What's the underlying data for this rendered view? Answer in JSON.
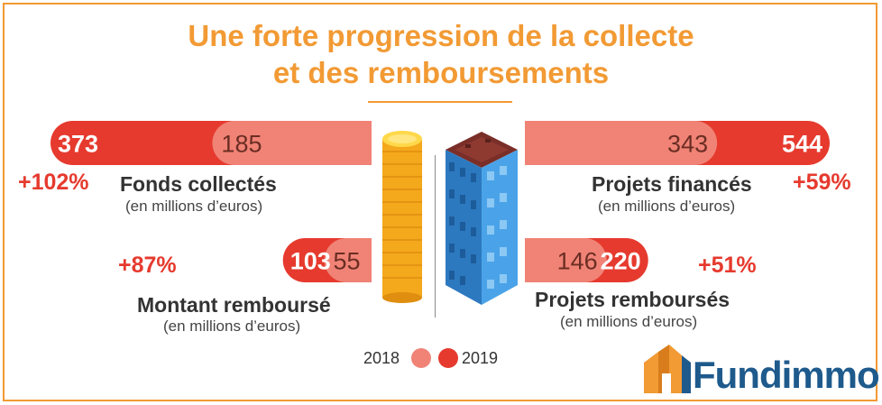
{
  "title": {
    "line1": "Une forte progression de la collecte",
    "line2": "et des remboursements"
  },
  "colors": {
    "accent": "#f29a34",
    "value_2019": "#e63a2e",
    "value_2018": "#f08376",
    "brand": "#1e5a8c",
    "coin": "#f6b51c",
    "building": "#3d95d8"
  },
  "metrics": [
    {
      "label": "Fonds collectés",
      "unit": "(en millions d’euros)",
      "value_2018": 185,
      "value_2019": 373,
      "growth": "+102%"
    },
    {
      "label": "Montant remboursé",
      "unit": "(en millions d’euros)",
      "value_2018": 55,
      "value_2019": 103,
      "growth": "+87%"
    },
    {
      "label": "Projets financés",
      "unit": "(en millions d’euros)",
      "value_2018": 343,
      "value_2019": 544,
      "growth": "+59%"
    },
    {
      "label": "Projets remboursés",
      "unit": "(en millions d’euros)",
      "value_2018": 146,
      "value_2019": 220,
      "growth": "+51%"
    }
  ],
  "chart_data": {
    "type": "bar",
    "title": "Une forte progression de la collecte et des remboursements",
    "categories": [
      "Fonds collectés",
      "Montant remboursé",
      "Projets financés",
      "Projets remboursés"
    ],
    "series": [
      {
        "name": "2018",
        "values": [
          185,
          55,
          343,
          146
        ]
      },
      {
        "name": "2019",
        "values": [
          373,
          103,
          544,
          220
        ]
      }
    ],
    "annotations": [
      "+102%",
      "+87%",
      "+59%",
      "+51%"
    ],
    "unit": "(en millions d’euros)"
  },
  "legend": {
    "label_2018": "2018",
    "label_2019": "2019"
  },
  "icons": {
    "coins": "coin-stack-icon",
    "building": "building-icon",
    "logo": "fundimmo-logo-icon"
  },
  "brand": {
    "name": "Fundimmo"
  }
}
